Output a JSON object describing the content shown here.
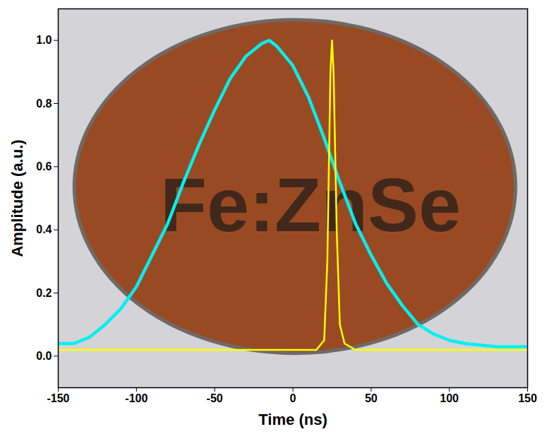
{
  "chart_data": {
    "type": "line",
    "xlabel": "Time (ns)",
    "ylabel": "Amplitude (a.u.)",
    "xlim": [
      -150,
      150
    ],
    "ylim": [
      -0.1,
      1.1
    ],
    "xticks": [
      -150,
      -100,
      -50,
      0,
      50,
      100,
      150
    ],
    "yticks": [
      {
        "value": 0,
        "label": "0.0"
      },
      0.2,
      0.4,
      0.6,
      0.8,
      {
        "value": 1,
        "label": "1.0"
      }
    ],
    "annotations": [
      "Fe:ZnSe"
    ],
    "series": [
      {
        "color": "#00f0f0",
        "x": [
          -150,
          -140,
          -130,
          -120,
          -110,
          -100,
          -90,
          -80,
          -70,
          -60,
          -50,
          -40,
          -30,
          -20,
          -15,
          -10,
          0,
          10,
          20,
          30,
          40,
          50,
          60,
          70,
          80,
          90,
          100,
          110,
          130,
          150
        ],
        "values": [
          0.04,
          0.04,
          0.06,
          0.1,
          0.15,
          0.22,
          0.32,
          0.42,
          0.55,
          0.67,
          0.78,
          0.88,
          0.95,
          0.99,
          1.0,
          0.98,
          0.92,
          0.82,
          0.69,
          0.55,
          0.42,
          0.32,
          0.23,
          0.16,
          0.1,
          0.07,
          0.05,
          0.04,
          0.03,
          0.03
        ]
      },
      {
        "color": "#ffff00",
        "x": [
          -150,
          -100,
          -50,
          0,
          15,
          20,
          22,
          24,
          25,
          26,
          28,
          30,
          33,
          40,
          100,
          150
        ],
        "values": [
          0.02,
          0.02,
          0.02,
          0.02,
          0.02,
          0.05,
          0.3,
          0.9,
          1.0,
          0.9,
          0.4,
          0.1,
          0.04,
          0.02,
          0.02,
          0.02
        ]
      }
    ]
  }
}
